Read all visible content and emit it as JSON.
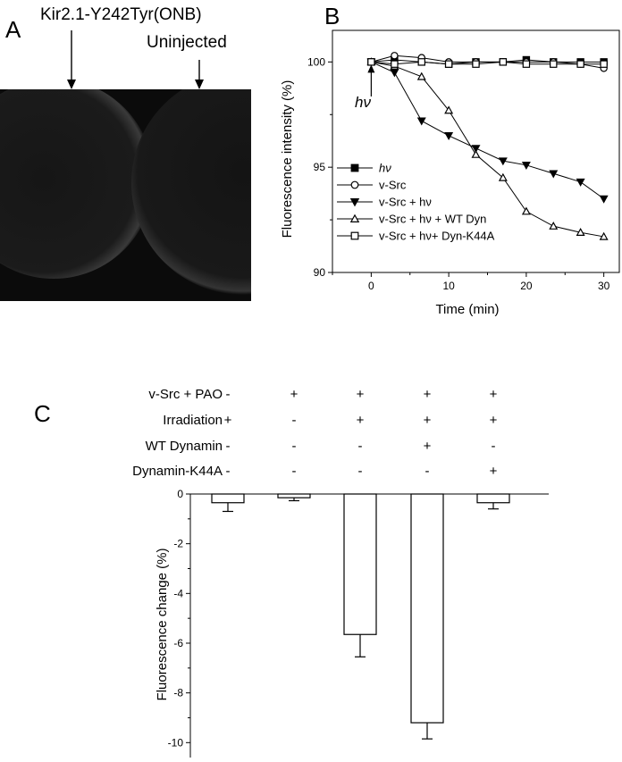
{
  "panel_a": {
    "letter": "A",
    "label_left": "Kir2.1-Y242Tyr(ONB)",
    "label_right": "Uninjected"
  },
  "chart_data": [
    {
      "panel": "B",
      "type": "line",
      "xlabel": "Time (min)",
      "ylabel": "Fluorescence intensity (%)",
      "xlim": [
        -5,
        32
      ],
      "ylim": [
        90,
        101.5
      ],
      "xticks": [
        "0",
        "10",
        "20",
        "30"
      ],
      "yticks": [
        "90",
        "95",
        "100"
      ],
      "annotation": "hν",
      "annotation_x": 0,
      "legend_position": "bottom-left",
      "series": [
        {
          "name": "hν",
          "marker": "filled-square",
          "x": [
            0,
            3,
            6.5,
            10,
            13.5,
            17,
            20,
            23.5,
            27,
            30
          ],
          "y": [
            100,
            100.1,
            100,
            99.9,
            100,
            100,
            100.1,
            100,
            100,
            100
          ]
        },
        {
          "name": "v-Src",
          "marker": "open-circle",
          "x": [
            0,
            3,
            6.5,
            10,
            13.5,
            17,
            20,
            23.5,
            27,
            30
          ],
          "y": [
            100,
            100.3,
            100.2,
            100,
            100,
            100,
            100,
            100,
            99.9,
            99.7
          ]
        },
        {
          "name": "v-Src + hν",
          "marker": "filled-triangle-down",
          "x": [
            0,
            3,
            6.5,
            10,
            13.5,
            17,
            20,
            23.5,
            27,
            30
          ],
          "y": [
            100,
            99.5,
            97.2,
            96.5,
            95.9,
            95.3,
            95.1,
            94.7,
            94.3,
            93.5
          ]
        },
        {
          "name": "v-Src + hν + WT Dyn",
          "marker": "open-triangle-up",
          "x": [
            0,
            3,
            6.5,
            10,
            13.5,
            17,
            20,
            23.5,
            27,
            30
          ],
          "y": [
            100,
            99.8,
            99.3,
            97.7,
            95.6,
            94.5,
            92.9,
            92.2,
            91.9,
            91.7
          ]
        },
        {
          "name": "v-Src + hν+ Dyn-K44A",
          "marker": "open-square",
          "x": [
            0,
            3,
            6.5,
            10,
            13.5,
            17,
            20,
            23.5,
            27,
            30
          ],
          "y": [
            100,
            99.9,
            100,
            99.9,
            99.9,
            100,
            99.9,
            99.9,
            99.9,
            99.9
          ]
        }
      ]
    },
    {
      "panel": "C",
      "type": "bar",
      "ylabel": "Fluorescence change (%)",
      "ylim": [
        -10.6,
        0
      ],
      "yticks": [
        "0",
        "-2",
        "-4",
        "-6",
        "-8",
        "-10"
      ],
      "conditions": [
        {
          "name": "v-Src + PAO",
          "signs": [
            "-",
            "+",
            "+",
            "+",
            "+"
          ]
        },
        {
          "name": "Irradiation",
          "signs": [
            "+",
            "-",
            "+",
            "+",
            "+"
          ]
        },
        {
          "name": "WT Dynamin",
          "signs": [
            "-",
            "-",
            "-",
            "+",
            "-"
          ]
        },
        {
          "name": "Dynamin-K44A",
          "signs": [
            "-",
            "-",
            "-",
            "-",
            "+"
          ]
        }
      ],
      "values": [
        -0.35,
        -0.15,
        -5.65,
        -9.2,
        -0.35
      ],
      "errors": [
        0.35,
        0.12,
        0.9,
        0.65,
        0.25
      ]
    }
  ]
}
